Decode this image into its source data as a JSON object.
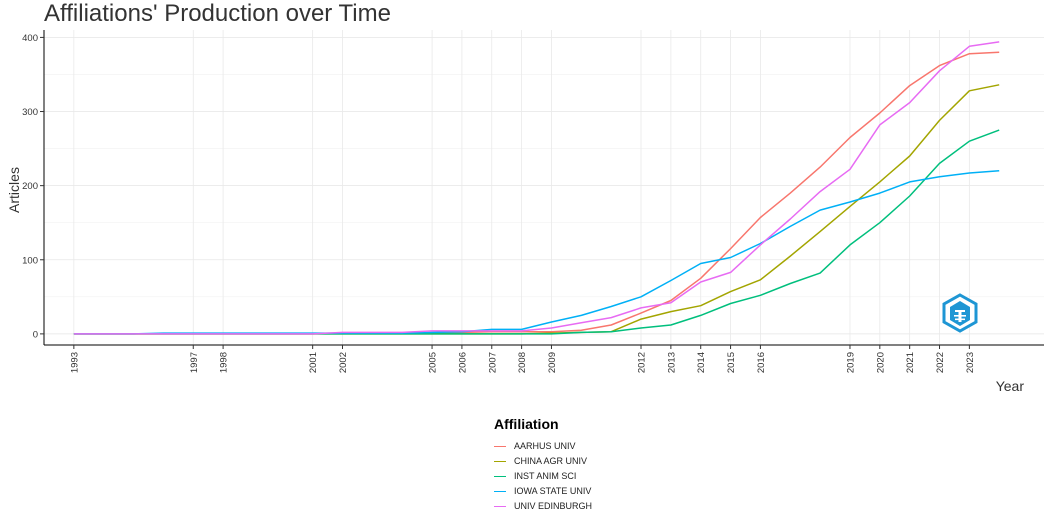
{
  "chart_data": {
    "type": "line",
    "title": "Affiliations' Production over Time",
    "xlabel": "Year",
    "ylabel": "Articles",
    "x_ticks": [
      1993,
      1997,
      1998,
      2001,
      2002,
      2005,
      2006,
      2007,
      2008,
      2009,
      2012,
      2013,
      2014,
      2015,
      2016,
      2019,
      2020,
      2021,
      2022,
      2023
    ],
    "y_ticks": [
      0,
      100,
      200,
      300,
      400
    ],
    "xlim": [
      1992,
      2025.5
    ],
    "ylim": [
      -15,
      410
    ],
    "grid": true,
    "legend_title": "Affiliation",
    "legend_position": "bottom",
    "x": [
      1993,
      1994,
      1995,
      1996,
      1997,
      1998,
      1999,
      2000,
      2001,
      2002,
      2003,
      2004,
      2005,
      2006,
      2007,
      2008,
      2009,
      2010,
      2011,
      2012,
      2013,
      2014,
      2015,
      2016,
      2017,
      2018,
      2019,
      2020,
      2021,
      2022,
      2023,
      2024
    ],
    "series": [
      {
        "name": "AARHUS UNIV",
        "color": "#f8766d",
        "values": [
          0,
          0,
          0,
          0,
          0,
          0,
          0,
          0,
          0,
          1,
          1,
          1,
          1,
          2,
          3,
          3,
          3,
          5,
          12,
          28,
          45,
          75,
          115,
          157,
          190,
          225,
          265,
          298,
          335,
          362,
          378,
          380
        ]
      },
      {
        "name": "CHINA AGR UNIV",
        "color": "#a3a500",
        "values": [
          0,
          0,
          0,
          0,
          0,
          0,
          0,
          0,
          0,
          0,
          0,
          0,
          0,
          0,
          0,
          0,
          1,
          2,
          3,
          20,
          30,
          38,
          57,
          73,
          105,
          138,
          172,
          205,
          240,
          288,
          328,
          336
        ]
      },
      {
        "name": "INST ANIM SCI",
        "color": "#00bf7d",
        "values": [
          0,
          0,
          0,
          0,
          0,
          0,
          0,
          0,
          0,
          0,
          0,
          0,
          0,
          0,
          0,
          0,
          0,
          2,
          3,
          8,
          12,
          25,
          41,
          52,
          68,
          82,
          120,
          150,
          186,
          230,
          260,
          275
        ]
      },
      {
        "name": "IOWA STATE UNIV",
        "color": "#00b0f6",
        "values": [
          0,
          0,
          0,
          1,
          1,
          1,
          1,
          1,
          1,
          1,
          1,
          1,
          2,
          3,
          6,
          6,
          16,
          25,
          37,
          50,
          72,
          95,
          103,
          122,
          145,
          167,
          178,
          190,
          205,
          212,
          217,
          220
        ]
      },
      {
        "name": "UNIV EDINBURGH",
        "color": "#e76bf3",
        "values": [
          0,
          0,
          0,
          0,
          0,
          0,
          0,
          0,
          0,
          2,
          2,
          2,
          4,
          4,
          4,
          4,
          8,
          15,
          22,
          35,
          42,
          70,
          83,
          120,
          155,
          192,
          222,
          282,
          312,
          355,
          388,
          394
        ]
      }
    ]
  }
}
